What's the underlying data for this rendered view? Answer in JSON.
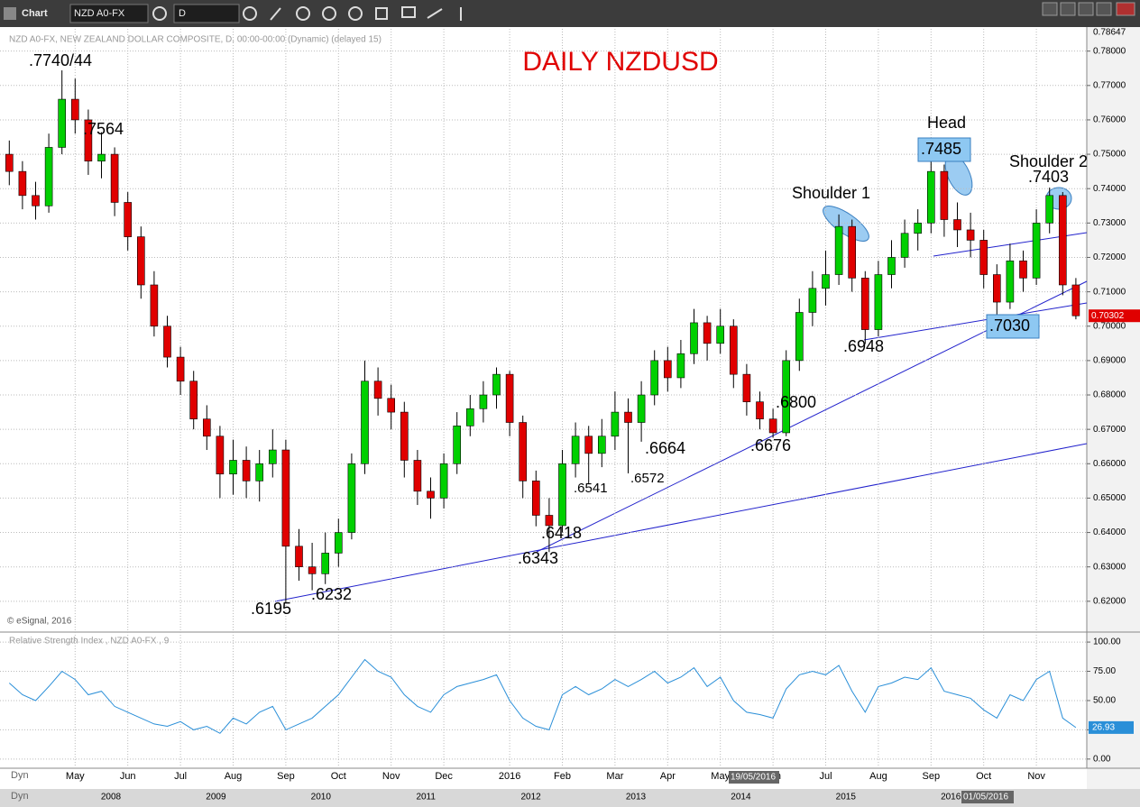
{
  "window": {
    "title": "Chart",
    "symbol": "NZD A0-FX",
    "interval": "D"
  },
  "chart_data": [
    {
      "type": "candlestick",
      "title": "DAILY NZDUSD",
      "subtitle": "NZD A0-FX, NEW ZEALAND DOLLAR COMPOSITE, D, 00:00-00:00 (Dynamic) (delayed 15)",
      "source": "© eSignal, 2016",
      "crosshair_label": "19/05/2016",
      "categories": [
        null,
        null,
        null,
        null,
        null,
        "May",
        null,
        null,
        null,
        "Jun",
        null,
        null,
        null,
        "Jul",
        null,
        null,
        null,
        "Aug",
        null,
        null,
        null,
        "Sep",
        null,
        null,
        null,
        "Oct",
        null,
        null,
        null,
        "Nov",
        null,
        null,
        null,
        "Dec",
        null,
        null,
        null,
        null,
        "2016",
        null,
        null,
        null,
        "Feb",
        null,
        null,
        null,
        "Mar",
        null,
        null,
        null,
        "Apr",
        null,
        null,
        null,
        "May",
        null,
        null,
        null,
        "Jun",
        null,
        null,
        null,
        "Jul",
        null,
        null,
        null,
        "Aug",
        null,
        null,
        null,
        "Sep",
        null,
        null,
        null,
        "Oct",
        null,
        null,
        null,
        "Nov",
        null,
        null,
        null
      ],
      "open": [
        0.75,
        0.745,
        0.738,
        0.735,
        0.752,
        0.766,
        0.76,
        0.748,
        0.75,
        0.736,
        0.726,
        0.712,
        0.7,
        0.691,
        0.684,
        0.673,
        0.668,
        0.657,
        0.661,
        0.655,
        0.66,
        0.664,
        0.636,
        0.63,
        0.628,
        0.634,
        0.64,
        0.66,
        0.684,
        0.679,
        0.675,
        0.661,
        0.652,
        0.65,
        0.66,
        0.671,
        0.676,
        0.68,
        0.686,
        0.672,
        0.655,
        0.645,
        0.642,
        0.66,
        0.668,
        0.663,
        0.668,
        0.675,
        0.672,
        0.68,
        0.69,
        0.685,
        0.692,
        0.701,
        0.695,
        0.7,
        0.686,
        0.678,
        0.673,
        0.669,
        0.69,
        0.704,
        0.711,
        0.715,
        0.729,
        0.714,
        0.699,
        0.715,
        0.72,
        0.727,
        0.73,
        0.745,
        0.731,
        0.728,
        0.725,
        0.715,
        0.707,
        0.719,
        0.714,
        0.73,
        0.738,
        0.712
      ],
      "high": [
        0.754,
        0.748,
        0.742,
        0.756,
        0.7744,
        0.772,
        0.763,
        0.7564,
        0.752,
        0.739,
        0.729,
        0.716,
        0.703,
        0.694,
        0.687,
        0.677,
        0.671,
        0.667,
        0.665,
        0.664,
        0.67,
        0.667,
        0.641,
        0.637,
        0.64,
        0.644,
        0.663,
        0.69,
        0.688,
        0.683,
        0.678,
        0.664,
        0.656,
        0.663,
        0.675,
        0.68,
        0.684,
        0.688,
        0.687,
        0.674,
        0.658,
        0.65,
        0.664,
        0.672,
        0.671,
        0.673,
        0.681,
        0.679,
        0.684,
        0.693,
        0.694,
        0.696,
        0.705,
        0.703,
        0.705,
        0.702,
        0.689,
        0.681,
        0.676,
        0.693,
        0.708,
        0.716,
        0.722,
        0.7325,
        0.731,
        0.716,
        0.719,
        0.725,
        0.731,
        0.734,
        0.7485,
        0.747,
        0.736,
        0.733,
        0.728,
        0.718,
        0.724,
        0.722,
        0.734,
        0.7403,
        0.739,
        0.714
      ],
      "low": [
        0.741,
        0.734,
        0.731,
        0.733,
        0.75,
        0.756,
        0.744,
        0.743,
        0.732,
        0.722,
        0.708,
        0.697,
        0.688,
        0.68,
        0.67,
        0.664,
        0.65,
        0.651,
        0.65,
        0.649,
        0.656,
        0.6195,
        0.626,
        0.6232,
        0.625,
        0.63,
        0.638,
        0.657,
        0.674,
        0.67,
        0.656,
        0.648,
        0.644,
        0.647,
        0.657,
        0.668,
        0.672,
        0.676,
        0.668,
        0.65,
        0.6418,
        0.6343,
        0.64,
        0.656,
        0.6541,
        0.659,
        0.664,
        0.6572,
        0.6664,
        0.677,
        0.681,
        0.682,
        0.689,
        0.69,
        0.692,
        0.682,
        0.674,
        0.67,
        0.6676,
        0.668,
        0.687,
        0.7,
        0.706,
        0.712,
        0.71,
        0.6948,
        0.697,
        0.711,
        0.717,
        0.722,
        0.727,
        0.726,
        0.723,
        0.72,
        0.711,
        0.703,
        0.705,
        0.71,
        0.712,
        0.727,
        0.709,
        0.702
      ],
      "close": [
        0.745,
        0.738,
        0.735,
        0.752,
        0.766,
        0.76,
        0.748,
        0.75,
        0.736,
        0.726,
        0.712,
        0.7,
        0.691,
        0.684,
        0.673,
        0.668,
        0.657,
        0.661,
        0.655,
        0.66,
        0.664,
        0.636,
        0.63,
        0.628,
        0.634,
        0.64,
        0.66,
        0.684,
        0.679,
        0.675,
        0.661,
        0.652,
        0.65,
        0.66,
        0.671,
        0.676,
        0.68,
        0.686,
        0.672,
        0.655,
        0.645,
        0.642,
        0.66,
        0.668,
        0.663,
        0.668,
        0.675,
        0.672,
        0.68,
        0.69,
        0.685,
        0.692,
        0.701,
        0.695,
        0.7,
        0.686,
        0.678,
        0.673,
        0.669,
        0.69,
        0.704,
        0.711,
        0.715,
        0.729,
        0.714,
        0.699,
        0.715,
        0.72,
        0.727,
        0.73,
        0.745,
        0.731,
        0.728,
        0.725,
        0.715,
        0.707,
        0.719,
        0.714,
        0.73,
        0.738,
        0.712,
        0.70302
      ],
      "up_color": "#00d000",
      "down_color": "#e00000",
      "ylim": [
        0.6113,
        0.78647
      ],
      "yticks": [
        {
          "value": 0.62,
          "label": "0.62000"
        },
        {
          "value": 0.63,
          "label": "0.63000"
        },
        {
          "value": 0.64,
          "label": "0.64000"
        },
        {
          "value": 0.65,
          "label": "0.65000"
        },
        {
          "value": 0.66,
          "label": "0.66000"
        },
        {
          "value": 0.67,
          "label": "0.67000"
        },
        {
          "value": 0.68,
          "label": "0.68000"
        },
        {
          "value": 0.69,
          "label": "0.69000"
        },
        {
          "value": 0.7,
          "label": "0.70000"
        },
        {
          "value": 0.71,
          "label": "0.71000"
        },
        {
          "value": 0.72,
          "label": "0.72000"
        },
        {
          "value": 0.73,
          "label": "0.73000"
        },
        {
          "value": 0.74,
          "label": "0.74000"
        },
        {
          "value": 0.75,
          "label": "0.75000"
        },
        {
          "value": 0.76,
          "label": "0.76000"
        },
        {
          "value": 0.77,
          "label": "0.77000"
        },
        {
          "value": 0.78,
          "label": "0.78000"
        }
      ],
      "grid": true,
      "annotations": [
        ".7740/44",
        ".7564",
        ".6195",
        ".6232",
        ".6418",
        ".6343",
        ".6541",
        ".6572",
        ".6664",
        ".6676",
        ".6800",
        ".6948",
        "Shoulder 1",
        "Head",
        ".7485",
        "Shoulder 2",
        ".7403",
        ".7030"
      ]
    },
    {
      "type": "line",
      "title": "Relative Strength Index , NZD A0-FX , 9",
      "values": [
        65,
        55,
        50,
        62,
        75,
        68,
        55,
        58,
        45,
        40,
        35,
        30,
        28,
        32,
        25,
        28,
        22,
        35,
        30,
        40,
        45,
        25,
        30,
        35,
        45,
        55,
        70,
        85,
        75,
        70,
        55,
        45,
        40,
        55,
        62,
        65,
        68,
        72,
        50,
        35,
        28,
        25,
        55,
        62,
        55,
        60,
        68,
        62,
        68,
        75,
        65,
        70,
        78,
        62,
        70,
        50,
        40,
        38,
        35,
        60,
        72,
        75,
        72,
        80,
        58,
        40,
        62,
        65,
        70,
        68,
        78,
        58,
        55,
        52,
        42,
        35,
        55,
        50,
        68,
        75,
        35,
        26.93
      ],
      "color": "#2a8fd8",
      "ylim": [
        -6.3,
        107
      ],
      "yticks": [
        {
          "value": 0,
          "label": "0.00"
        },
        {
          "value": 25,
          "label": "25.00"
        },
        {
          "value": 50,
          "label": "50.00"
        },
        {
          "value": 75,
          "label": "75.00"
        },
        {
          "value": 100,
          "label": "100.00"
        }
      ],
      "grid": true
    }
  ],
  "navigator": {
    "label": "Dyn",
    "years": [
      "2008",
      "2009",
      "2010",
      "2011",
      "2012",
      "2013",
      "2014",
      "2015",
      "2016"
    ],
    "cursor_label": "01/05/2016"
  }
}
